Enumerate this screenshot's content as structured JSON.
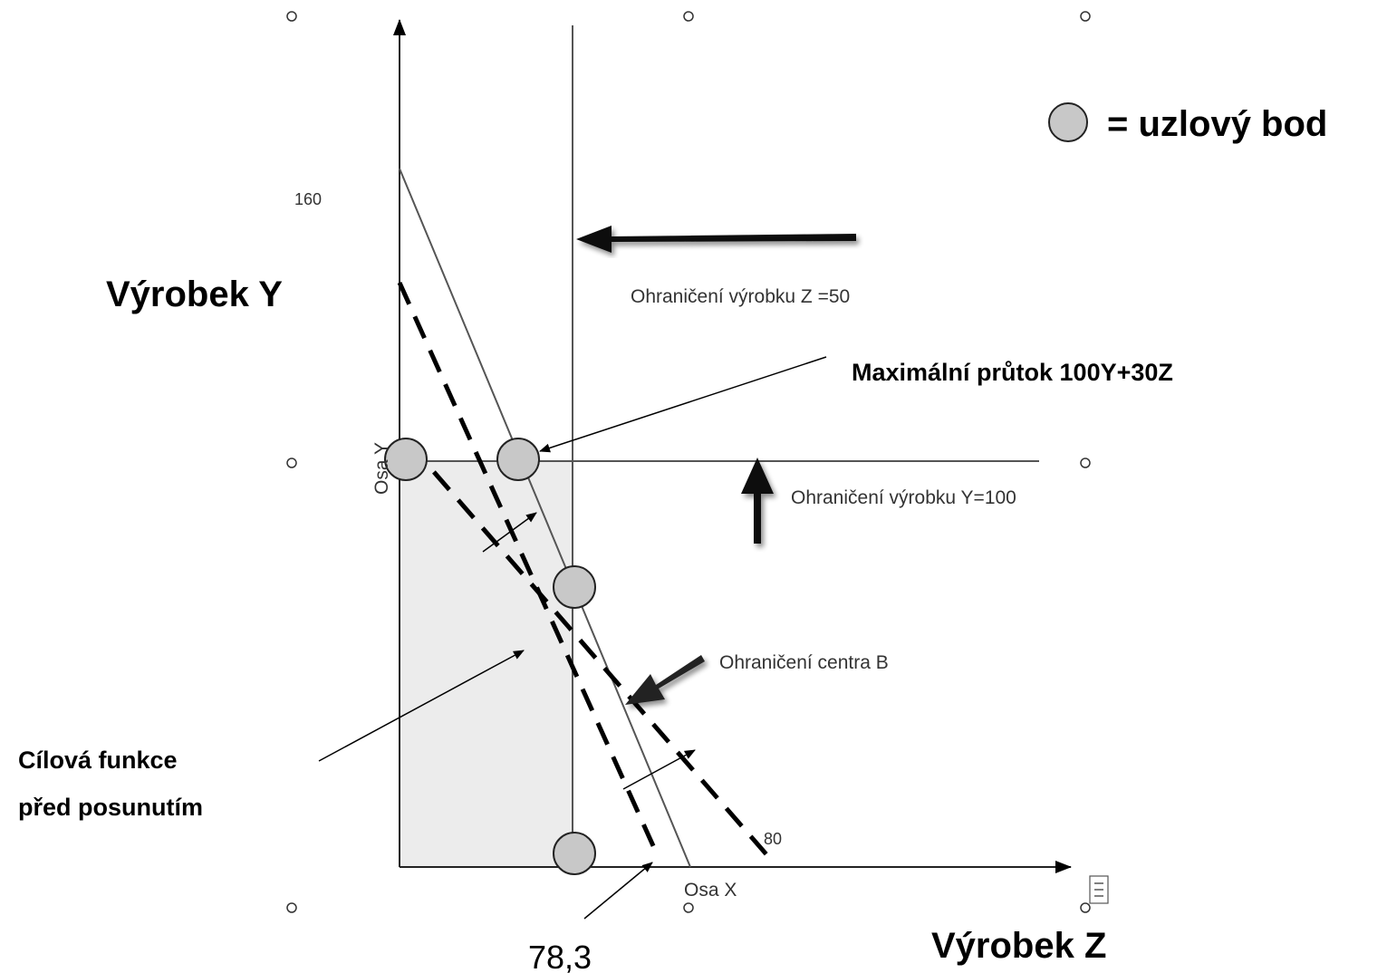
{
  "labels": {
    "product_y": "Výrobek Y",
    "product_z": "Výrobek Z",
    "legend": "= uzlový bod",
    "constraint_z": "Ohraničení  výrobku Z =50",
    "constraint_y": "Ohraničení výrobku Y=100",
    "constraint_b": "Ohraničení centra B",
    "max_flow": "Maximální průtok 100Y+30Z",
    "objective_line1": "Cílová funkce",
    "objective_line2": "před posunutím",
    "axis_y": "Osa Y",
    "axis_x": "Osa X",
    "tick_160": "160",
    "tick_80": "80",
    "value_783": "78,3"
  },
  "colors": {
    "feasible_region": "#ececec",
    "node_fill": "#c8c8c8",
    "line": "#444444",
    "dashed": "#000000"
  }
}
